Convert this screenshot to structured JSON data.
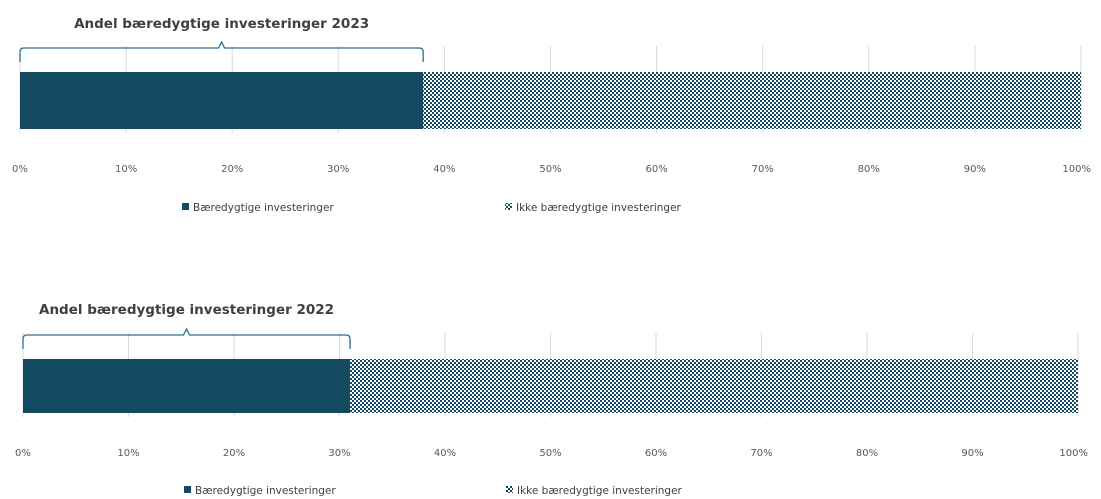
{
  "colors": {
    "sustainable": "#134961",
    "non_sustainable_pattern": "#134961",
    "grid": "#d9d9d9",
    "bracket": "#2e6d8a"
  },
  "chart_data": [
    {
      "type": "bar",
      "orientation": "horizontal",
      "stacked": true,
      "title": "Andel bæredygtige investeringer 2023",
      "categories": [
        "2023"
      ],
      "series": [
        {
          "name": "Bæredygtige investeringer",
          "values": [
            38
          ]
        },
        {
          "name": "Ikke bæredygtige investeringer",
          "values": [
            62
          ]
        }
      ],
      "xlim": [
        0,
        100
      ],
      "xticks": [
        "0%",
        "10%",
        "20%",
        "30%",
        "40%",
        "50%",
        "60%",
        "70%",
        "80%",
        "90%",
        "100%"
      ],
      "grid": true,
      "legend_position": "bottom"
    },
    {
      "type": "bar",
      "orientation": "horizontal",
      "stacked": true,
      "title": "Andel bæredygtige investeringer 2022",
      "categories": [
        "2022"
      ],
      "series": [
        {
          "name": "Bæredygtige investeringer",
          "values": [
            31
          ]
        },
        {
          "name": "Ikke bæredygtige investeringer",
          "values": [
            69
          ]
        }
      ],
      "xlim": [
        0,
        100
      ],
      "xticks": [
        "0%",
        "10%",
        "20%",
        "30%",
        "40%",
        "50%",
        "60%",
        "70%",
        "80%",
        "90%",
        "100%"
      ],
      "grid": true,
      "legend_position": "bottom"
    }
  ]
}
